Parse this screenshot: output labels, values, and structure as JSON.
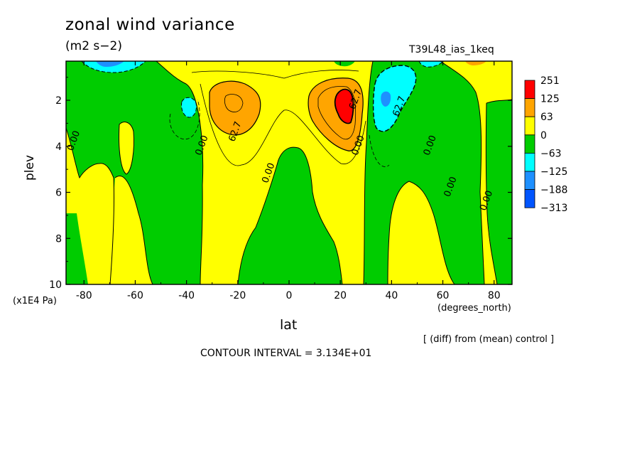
{
  "header": {
    "title": "zonal wind variance",
    "units": "(m2 s−2)",
    "run_id": "T39L48_ias_1keq"
  },
  "footer": {
    "diff_note": "[ (diff) from (mean) control ]",
    "contour_interval": "CONTOUR INTERVAL = 3.134E+01"
  },
  "chart_data": {
    "type": "heatmap",
    "xlabel": "lat",
    "x_unit": "(degrees_north)",
    "ylabel": "plev",
    "y_unit": "(x1E4 Pa)",
    "xlim": [
      -87,
      87
    ],
    "ylim": [
      10,
      0.3
    ],
    "x_ticks": [
      -80,
      -60,
      -40,
      -20,
      0,
      20,
      40,
      60,
      80
    ],
    "y_ticks": [
      2,
      4,
      6,
      8,
      10
    ],
    "colorbar": {
      "levels": [
        "251",
        "125",
        "63",
        "0",
        "−63",
        "−125",
        "−188",
        "−313"
      ],
      "colors": [
        "#ff0000",
        "#ffa500",
        "#ffff00",
        "#00cc00",
        "#00ffff",
        "#1e90ff",
        "#0055ff"
      ],
      "band_colors_named": [
        "red",
        "orange",
        "yellow",
        "green",
        "cyan",
        "light blue",
        "blue"
      ]
    },
    "contour_labels": [
      {
        "text": "0.00",
        "lat": -83,
        "plev": 3.8
      },
      {
        "text": "62.7",
        "lat": -20,
        "plev": 3.4
      },
      {
        "text": "0.00",
        "lat": -33,
        "plev": 4.0
      },
      {
        "text": "0.00",
        "lat": -7,
        "plev": 5.2
      },
      {
        "text": "62.7",
        "lat": 27,
        "plev": 2.0
      },
      {
        "text": "0.00",
        "lat": 28,
        "plev": 4.0
      },
      {
        "text": "62.7",
        "lat": 44,
        "plev": 2.3
      },
      {
        "text": "0.00",
        "lat": 56,
        "plev": 4.0
      },
      {
        "text": "0.00",
        "lat": 64,
        "plev": 5.8
      },
      {
        "text": "0.00",
        "lat": 78,
        "plev": 6.4
      }
    ],
    "features": [
      {
        "name": "NH maximum",
        "lat": 22,
        "plev": 2.0,
        "band": "251"
      },
      {
        "name": "SH maximum",
        "lat": -27,
        "plev": 2.2,
        "band": "125"
      },
      {
        "name": "NH minimum",
        "lat": 39,
        "plev": 1.8,
        "band": "−188"
      },
      {
        "name": "SH minimum",
        "lat": -40,
        "plev": 2.1,
        "band": "−125"
      }
    ]
  }
}
